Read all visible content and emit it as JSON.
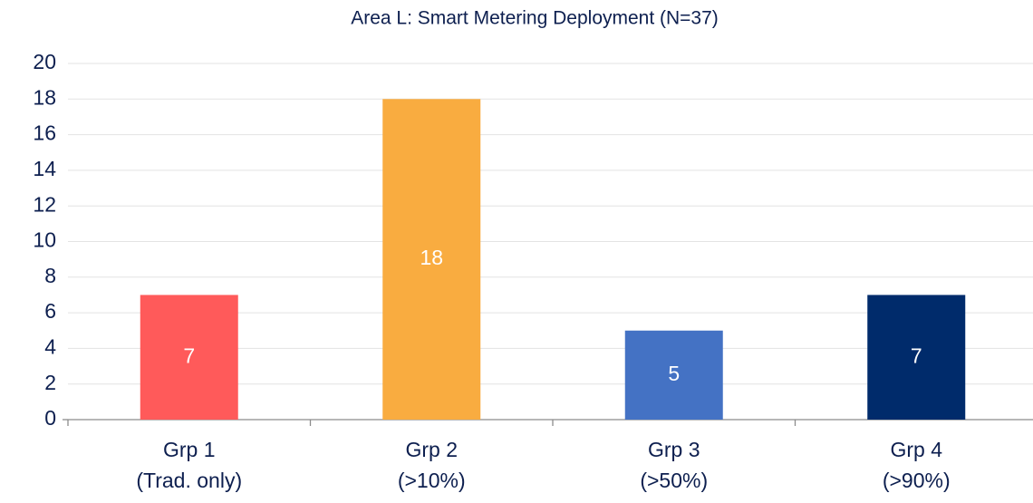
{
  "chart_data": {
    "type": "bar",
    "title": "Area L: Smart Metering Deployment (N=37)",
    "categories": [
      [
        "Grp 1",
        "(Trad. only)"
      ],
      [
        "Grp 2",
        "(>10%)"
      ],
      [
        "Grp 3",
        "(>50%)"
      ],
      [
        "Grp 4",
        "(>90%)"
      ]
    ],
    "values": [
      7,
      18,
      5,
      7
    ],
    "colors": [
      "#ff5a5a",
      "#f9ac40",
      "#4472c4",
      "#002b6b"
    ],
    "ylim": [
      0,
      20
    ],
    "yticks": [
      0,
      2,
      4,
      6,
      8,
      10,
      12,
      14,
      16,
      18,
      20
    ],
    "grid": true
  }
}
